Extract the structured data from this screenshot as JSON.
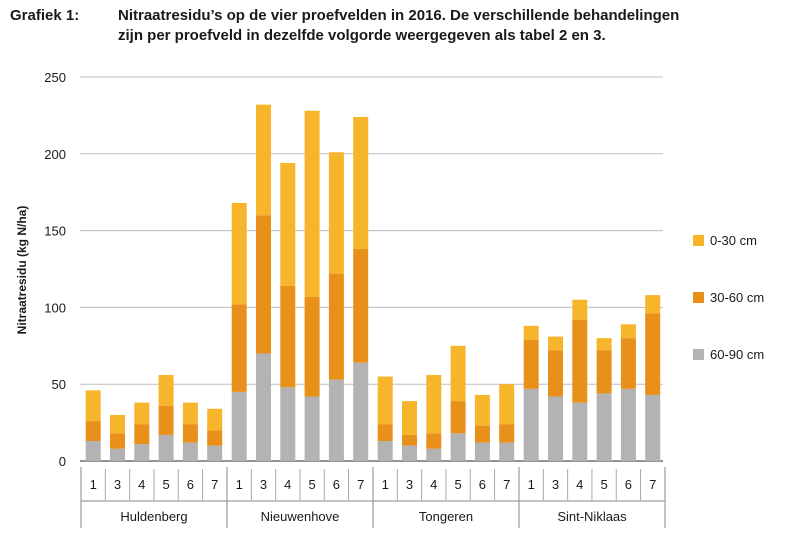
{
  "caption": {
    "label": "Grafiek 1:",
    "line1": "Nitraatresidu’s op de vier proefvelden in 2016. De verschillende behandelingen",
    "line2": "zijn per proefveld in dezelfde volgorde weergegeven als tabel 2 en 3."
  },
  "chart_data": {
    "type": "bar",
    "stacked": true,
    "ylabel": "Nitraatresidu (kg N/ha)",
    "xlabel": "",
    "ylim": [
      0,
      250
    ],
    "yticks": [
      0,
      50,
      100,
      150,
      200,
      250
    ],
    "grid": true,
    "legend_position": "right",
    "groups": [
      {
        "name": "Huldenberg",
        "categories": [
          "1",
          "3",
          "4",
          "5",
          "6",
          "7"
        ]
      },
      {
        "name": "Nieuwenhove",
        "categories": [
          "1",
          "3",
          "4",
          "5",
          "6",
          "7"
        ]
      },
      {
        "name": "Tongeren",
        "categories": [
          "1",
          "3",
          "4",
          "5",
          "6",
          "7"
        ]
      },
      {
        "name": "Sint-Niklaas",
        "categories": [
          "1",
          "3",
          "4",
          "5",
          "6",
          "7"
        ]
      }
    ],
    "series": [
      {
        "name": "60-90 cm",
        "color": "#b3b3b3",
        "values": [
          13,
          8,
          11,
          17,
          12,
          10,
          45,
          70,
          48,
          42,
          53,
          64,
          13,
          10,
          8,
          18,
          12,
          12,
          47,
          42,
          38,
          44,
          47,
          43
        ]
      },
      {
        "name": "30-60 cm",
        "color": "#e8901a",
        "values": [
          13,
          10,
          13,
          19,
          12,
          10,
          57,
          90,
          66,
          65,
          69,
          74,
          11,
          7,
          10,
          21,
          11,
          12,
          32,
          30,
          54,
          28,
          33,
          53
        ]
      },
      {
        "name": "0-30 cm",
        "color": "#f7b52c",
        "values": [
          20,
          12,
          14,
          20,
          14,
          14,
          66,
          72,
          80,
          121,
          79,
          86,
          31,
          22,
          38,
          36,
          20,
          26,
          9,
          9,
          13,
          8,
          9,
          12
        ]
      }
    ],
    "legend_order": [
      "0-30 cm",
      "30-60 cm",
      "60-90 cm"
    ]
  }
}
